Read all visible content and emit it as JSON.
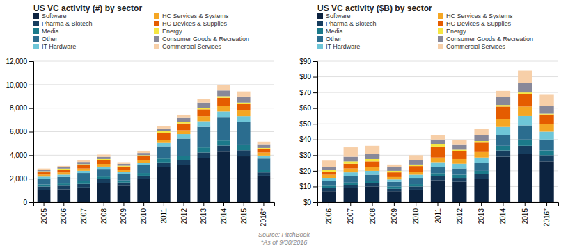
{
  "chart_data": [
    {
      "type": "bar",
      "stacked": true,
      "title": "US VC activity (#) by sector",
      "categories": [
        "2005",
        "2006",
        "2007",
        "2008",
        "2009",
        "2010",
        "2011",
        "2012",
        "2013",
        "2014",
        "2015",
        "2016*"
      ],
      "series": [
        {
          "name": "Software",
          "color": "#0c2340",
          "values": [
            1050,
            1100,
            1250,
            1650,
            1400,
            1950,
            3000,
            3150,
            3750,
            4300,
            3900,
            2250
          ]
        },
        {
          "name": "Pharma & Biotech",
          "color": "#163d5e",
          "values": [
            280,
            300,
            300,
            300,
            270,
            300,
            380,
            430,
            480,
            520,
            520,
            280
          ]
        },
        {
          "name": "Media",
          "color": "#1b7a8a",
          "values": [
            180,
            190,
            230,
            230,
            180,
            230,
            330,
            380,
            430,
            430,
            430,
            230
          ]
        },
        {
          "name": "Other",
          "color": "#2b6d8f",
          "values": [
            480,
            560,
            700,
            650,
            560,
            680,
            1050,
            1450,
            1750,
            1950,
            1950,
            950
          ]
        },
        {
          "name": "IT Hardware",
          "color": "#6ec6d8",
          "values": [
            180,
            190,
            190,
            190,
            160,
            190,
            280,
            380,
            480,
            520,
            520,
            260
          ]
        },
        {
          "name": "HC Services & Systems",
          "color": "#f5a623",
          "values": [
            180,
            190,
            190,
            230,
            180,
            230,
            280,
            330,
            430,
            480,
            480,
            260
          ]
        },
        {
          "name": "HC Devices & Supplies",
          "color": "#e55c00",
          "values": [
            190,
            230,
            280,
            330,
            280,
            330,
            580,
            580,
            580,
            680,
            580,
            330
          ]
        },
        {
          "name": "Energy",
          "color": "#f5e642",
          "values": [
            90,
            90,
            90,
            90,
            70,
            90,
            140,
            140,
            140,
            140,
            90,
            55
          ]
        },
        {
          "name": "Consumer Goods & Recreation",
          "color": "#888899",
          "values": [
            140,
            140,
            190,
            190,
            160,
            190,
            230,
            330,
            430,
            480,
            520,
            260
          ]
        },
        {
          "name": "Commercial Services",
          "color": "#f7cfa8",
          "values": [
            90,
            90,
            140,
            190,
            140,
            190,
            230,
            280,
            330,
            430,
            430,
            280
          ]
        }
      ],
      "ylim": [
        0,
        12000
      ],
      "yticks": [
        0,
        {
          "value": 2000,
          "label": "2,000"
        },
        {
          "value": 4000,
          "label": "4,000"
        },
        {
          "value": 6000,
          "label": "6,000"
        },
        {
          "value": 8000,
          "label": "8,000"
        },
        {
          "value": 10000,
          "label": "10,000"
        },
        {
          "value": 12000,
          "label": "12,000"
        }
      ],
      "grid": true,
      "legend": "upper left",
      "annotations": [
        "Source: PitchBook\n*As of 9/30/2016"
      ]
    },
    {
      "type": "bar",
      "stacked": true,
      "title": "US VC activity ($B) by sector",
      "categories": [
        "2006",
        "2007",
        "2008",
        "2009",
        "2010",
        "2011",
        "2012",
        "2013",
        "2014",
        "2015",
        "2016*"
      ],
      "series": [
        {
          "name": "Software",
          "color": "#0c2340",
          "values": [
            7,
            9,
            10,
            7,
            8,
            14,
            13,
            15,
            29,
            31,
            26
          ]
        },
        {
          "name": "Pharma & Biotech",
          "color": "#163d5e",
          "values": [
            2,
            2,
            2,
            1.5,
            2,
            2.5,
            2.5,
            3,
            4,
            5,
            4
          ]
        },
        {
          "name": "Media",
          "color": "#1b7a8a",
          "values": [
            1.5,
            1.5,
            1.5,
            1.5,
            1.5,
            2,
            2,
            2,
            3,
            4,
            3
          ]
        },
        {
          "name": "Other",
          "color": "#2b6d8f",
          "values": [
            3,
            4,
            4,
            3,
            4,
            4,
            4,
            5,
            7,
            9,
            7
          ]
        },
        {
          "name": "IT Hardware",
          "color": "#6ec6d8",
          "values": [
            2,
            2.5,
            2.5,
            1.5,
            2,
            3,
            3,
            3.5,
            5,
            6,
            5
          ]
        },
        {
          "name": "HC Services & Systems",
          "color": "#f5a623",
          "values": [
            2,
            2.5,
            2.5,
            1.5,
            2,
            3,
            3,
            3.5,
            5,
            6,
            5
          ]
        },
        {
          "name": "HC Devices & Supplies",
          "color": "#e55c00",
          "values": [
            2,
            3,
            3.5,
            3,
            3.5,
            7,
            5,
            6,
            8,
            8,
            6
          ]
        },
        {
          "name": "Energy",
          "color": "#f5e642",
          "values": [
            1,
            1.5,
            1.5,
            1,
            1,
            1.5,
            1,
            1,
            1,
            1,
            0.5
          ]
        },
        {
          "name": "Consumer Goods & Recreation",
          "color": "#888899",
          "values": [
            2,
            3,
            3.5,
            2.5,
            3,
            3,
            3,
            4,
            5,
            6,
            5
          ]
        },
        {
          "name": "Commercial Services",
          "color": "#f7cfa8",
          "values": [
            4,
            6,
            5,
            1.5,
            3,
            3,
            3,
            4,
            4,
            8,
            7
          ]
        }
      ],
      "ylim": [
        0,
        90
      ],
      "yticks": [
        {
          "value": 0,
          "label": "$0"
        },
        {
          "value": 10,
          "label": "$10"
        },
        {
          "value": 20,
          "label": "$20"
        },
        {
          "value": 30,
          "label": "$30"
        },
        {
          "value": 40,
          "label": "$40"
        },
        {
          "value": 50,
          "label": "$50"
        },
        {
          "value": 60,
          "label": "$60"
        },
        {
          "value": 70,
          "label": "$70"
        },
        {
          "value": 80,
          "label": "$80"
        },
        {
          "value": 90,
          "label": "$90"
        }
      ],
      "grid": true,
      "legend": "upper left"
    }
  ]
}
